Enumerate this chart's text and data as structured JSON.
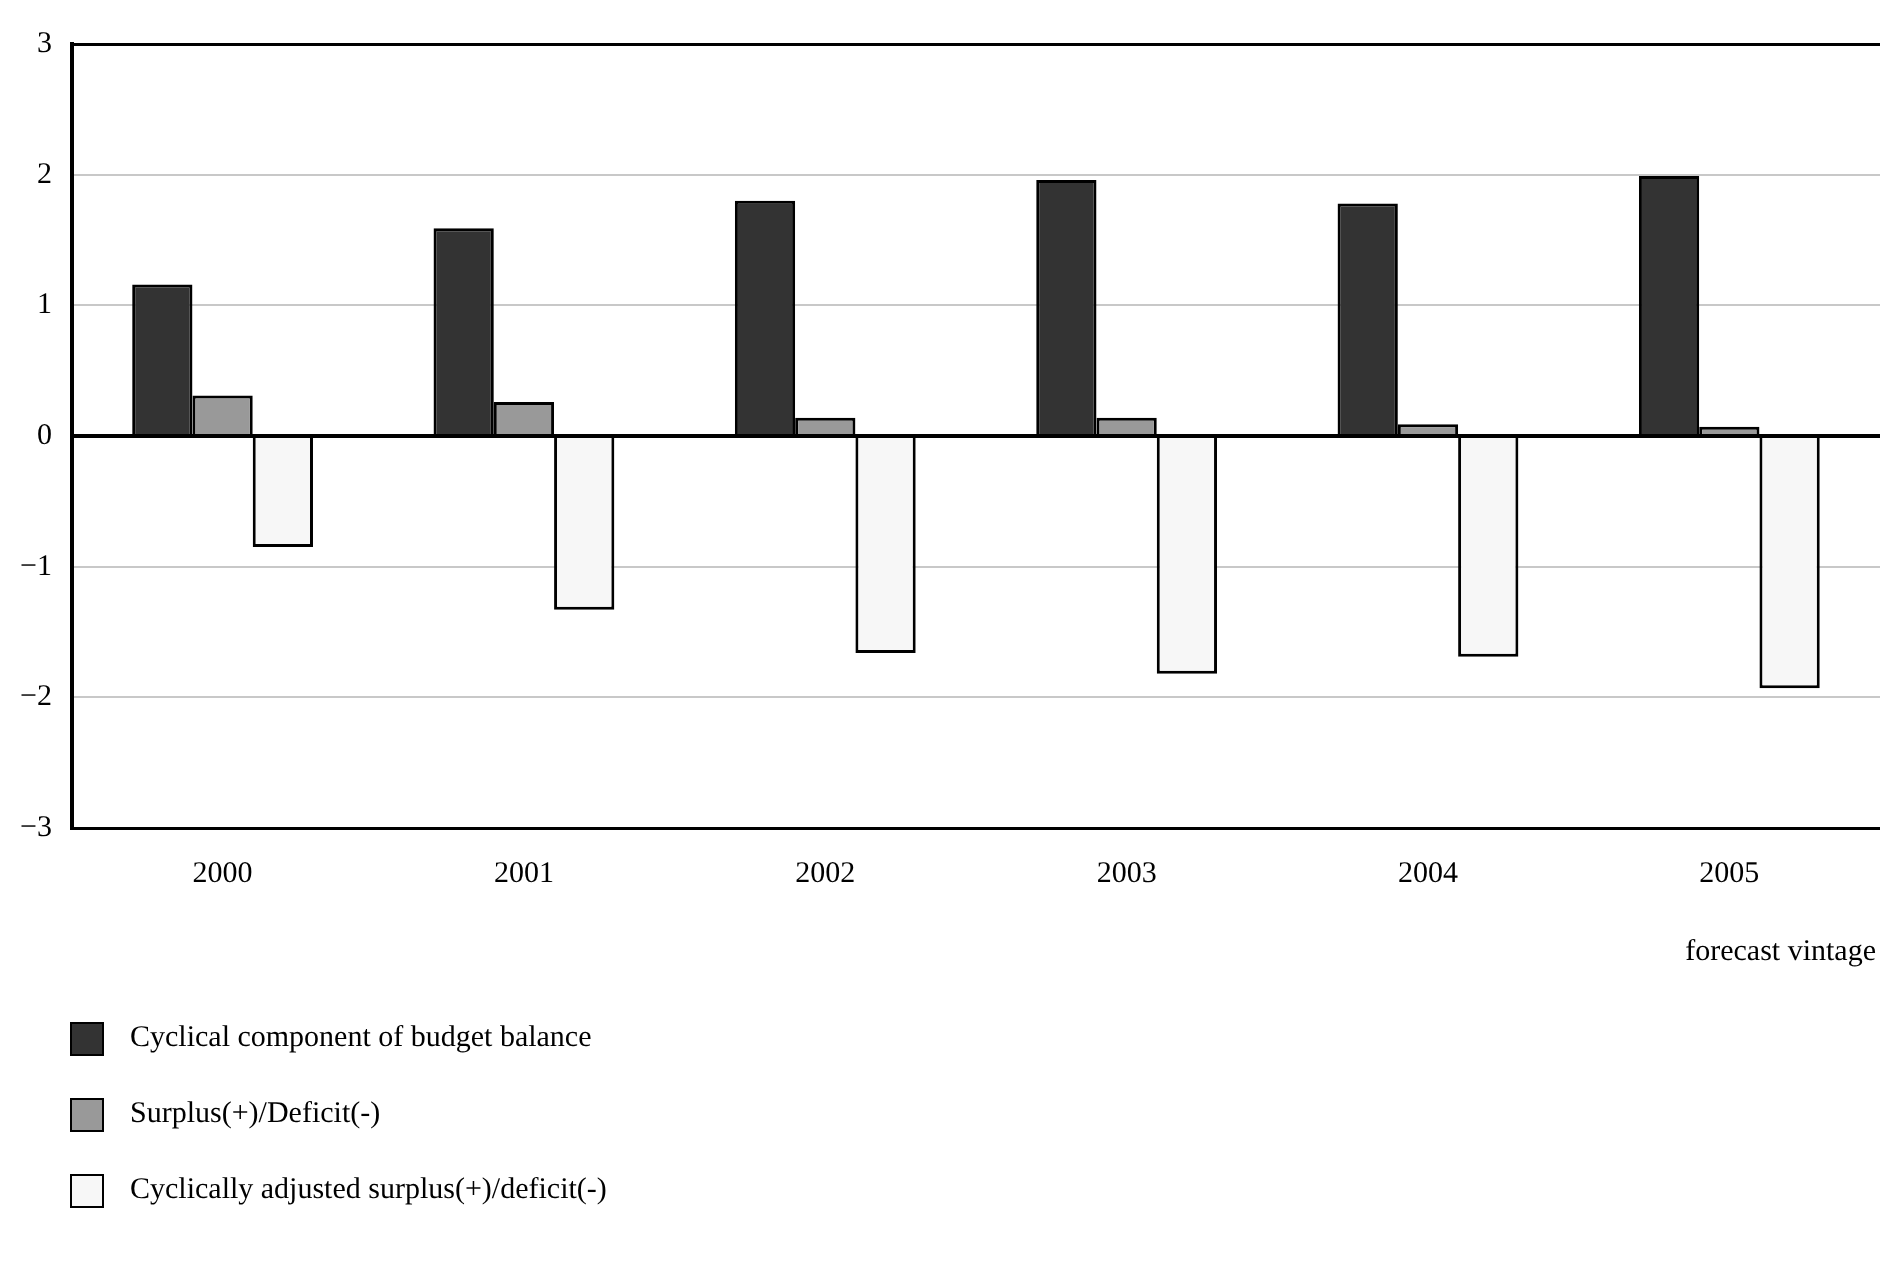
{
  "chart_data": {
    "type": "bar",
    "xlabel": "forecast vintage",
    "categories": [
      "2000",
      "2001",
      "2002",
      "2003",
      "2004",
      "2005"
    ],
    "series": [
      {
        "name": "Cyclical component of budget balance",
        "color": "#333333",
        "values": [
          1.16,
          1.59,
          1.8,
          1.96,
          1.78,
          1.99
        ]
      },
      {
        "name": "Surplus(+)/Deficit(-)",
        "color": "#999999",
        "values": [
          0.31,
          0.26,
          0.14,
          0.14,
          0.09,
          0.07
        ]
      },
      {
        "name": "Cyclically adjusted surplus(+)/deficit(-)",
        "color": "#f7f7f7",
        "values": [
          -0.85,
          -1.33,
          -1.66,
          -1.82,
          -1.69,
          -1.93
        ]
      }
    ],
    "ylim": [
      -3,
      3
    ],
    "yticks": [
      -3,
      -2,
      -1,
      0,
      1,
      2,
      3
    ],
    "grid": "y",
    "legend": "bottom left"
  }
}
